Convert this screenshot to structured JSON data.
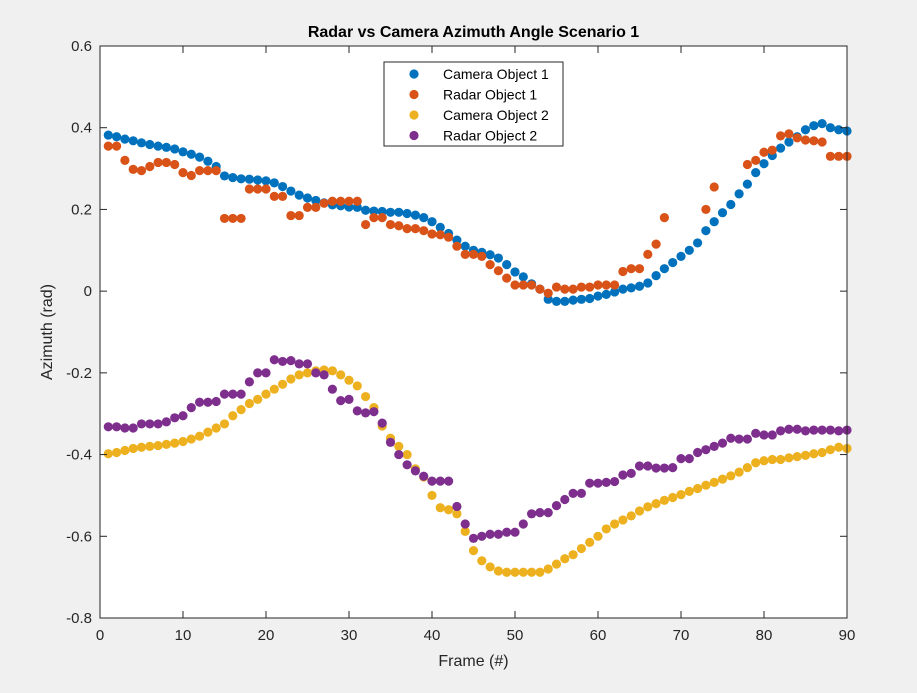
{
  "figure": {
    "background": "#f0f0f0"
  },
  "chart_data": {
    "type": "scatter",
    "title": "Radar vs Camera Azimuth Angle Scenario 1",
    "xlabel": "Frame (#)",
    "ylabel": "Azimuth (rad)",
    "xlim": [
      0,
      90
    ],
    "ylim": [
      -0.8,
      0.6
    ],
    "xticks": [
      0,
      10,
      20,
      30,
      40,
      50,
      60,
      70,
      80,
      90
    ],
    "xtick_labels": [
      "0",
      "10",
      "20",
      "30",
      "40",
      "50",
      "60",
      "70",
      "80",
      "90"
    ],
    "yticks": [
      -0.8,
      -0.6,
      -0.4,
      -0.2,
      0,
      0.2,
      0.4,
      0.6
    ],
    "ytick_labels": [
      "-0.8",
      "-0.6",
      "-0.4",
      "-0.2",
      "0",
      "0.2",
      "0.4",
      "0.6"
    ],
    "grid": false,
    "legend": "top-center",
    "series": [
      {
        "name": "Camera Object 1",
        "color": "#0072bd",
        "x": [
          1,
          2,
          3,
          4,
          5,
          6,
          7,
          8,
          9,
          10,
          11,
          12,
          13,
          14,
          15,
          16,
          17,
          18,
          19,
          20,
          21,
          22,
          23,
          24,
          25,
          26,
          27,
          28,
          29,
          30,
          31,
          32,
          33,
          34,
          35,
          36,
          37,
          38,
          39,
          40,
          41,
          42,
          43,
          44,
          45,
          46,
          47,
          48,
          49,
          50,
          51,
          52,
          53,
          54,
          55,
          56,
          57,
          58,
          59,
          60,
          61,
          62,
          63,
          64,
          65,
          66,
          67,
          68,
          69,
          70,
          71,
          72,
          73,
          74,
          75,
          76,
          77,
          78,
          79,
          80,
          81,
          82,
          83,
          84,
          85,
          86,
          87,
          88,
          89,
          90
        ],
        "y": [
          0.382,
          0.378,
          0.372,
          0.368,
          0.363,
          0.359,
          0.355,
          0.352,
          0.348,
          0.341,
          0.335,
          0.328,
          0.318,
          0.305,
          0.282,
          0.278,
          0.275,
          0.274,
          0.272,
          0.27,
          0.265,
          0.256,
          0.245,
          0.235,
          0.228,
          0.222,
          0.216,
          0.211,
          0.209,
          0.206,
          0.205,
          0.198,
          0.196,
          0.195,
          0.193,
          0.193,
          0.19,
          0.186,
          0.18,
          0.17,
          0.156,
          0.141,
          0.125,
          0.11,
          0.1,
          0.095,
          0.089,
          0.081,
          0.065,
          0.047,
          0.035,
          0.018,
          0.005,
          -0.02,
          -0.025,
          -0.025,
          -0.022,
          -0.02,
          -0.018,
          -0.012,
          -0.008,
          -0.002,
          0.005,
          0.008,
          0.012,
          0.02,
          0.038,
          0.055,
          0.07,
          0.085,
          0.1,
          0.118,
          0.148,
          0.17,
          0.192,
          0.212,
          0.238,
          0.262,
          0.29,
          0.312,
          0.332,
          0.35,
          0.365,
          0.378,
          0.395,
          0.405,
          0.41,
          0.4,
          0.395,
          0.392
        ]
      },
      {
        "name": "Radar Object 1",
        "color": "#d95319",
        "x": [
          1,
          2,
          3,
          4,
          5,
          6,
          7,
          8,
          9,
          10,
          11,
          12,
          13,
          14,
          15,
          16,
          17,
          18,
          19,
          20,
          21,
          22,
          23,
          24,
          25,
          26,
          27,
          28,
          29,
          30,
          31,
          32,
          33,
          34,
          35,
          36,
          37,
          38,
          39,
          40,
          41,
          42,
          43,
          44,
          45,
          46,
          47,
          48,
          49,
          50,
          51,
          52,
          53,
          54,
          55,
          56,
          57,
          58,
          59,
          60,
          61,
          62,
          63,
          64,
          65,
          66,
          67,
          68,
          73,
          74,
          78,
          79,
          80,
          81,
          82,
          83,
          84,
          85,
          86,
          87,
          88,
          89,
          90
        ],
        "y": [
          0.355,
          0.355,
          0.32,
          0.298,
          0.295,
          0.305,
          0.315,
          0.315,
          0.31,
          0.29,
          0.283,
          0.295,
          0.295,
          0.295,
          0.178,
          0.178,
          0.178,
          0.25,
          0.25,
          0.25,
          0.232,
          0.232,
          0.185,
          0.185,
          0.205,
          0.205,
          0.215,
          0.22,
          0.22,
          0.22,
          0.22,
          0.163,
          0.18,
          0.18,
          0.163,
          0.16,
          0.153,
          0.153,
          0.148,
          0.14,
          0.138,
          0.132,
          0.11,
          0.09,
          0.09,
          0.085,
          0.065,
          0.05,
          0.032,
          0.015,
          0.015,
          0.015,
          0.005,
          -0.005,
          0.01,
          0.005,
          0.005,
          0.01,
          0.01,
          0.015,
          0.015,
          0.015,
          0.048,
          0.055,
          0.055,
          0.09,
          0.115,
          0.18,
          0.2,
          0.255,
          0.31,
          0.32,
          0.34,
          0.345,
          0.38,
          0.385,
          0.375,
          0.37,
          0.368,
          0.365,
          0.33,
          0.33,
          0.33
        ]
      },
      {
        "name": "Camera Object 2",
        "color": "#edb120",
        "x": [
          1,
          2,
          3,
          4,
          5,
          6,
          7,
          8,
          9,
          10,
          11,
          12,
          13,
          14,
          15,
          16,
          17,
          18,
          19,
          20,
          21,
          22,
          23,
          24,
          25,
          26,
          27,
          28,
          29,
          30,
          31,
          32,
          33,
          34,
          35,
          36,
          37,
          38,
          39,
          40,
          41,
          42,
          43,
          44,
          45,
          46,
          47,
          48,
          49,
          50,
          51,
          52,
          53,
          54,
          55,
          56,
          57,
          58,
          59,
          60,
          61,
          62,
          63,
          64,
          65,
          66,
          67,
          68,
          69,
          70,
          71,
          72,
          73,
          74,
          75,
          76,
          77,
          78,
          79,
          80,
          81,
          82,
          83,
          84,
          85,
          86,
          87,
          88,
          89,
          90
        ],
        "y": [
          -0.398,
          -0.395,
          -0.39,
          -0.385,
          -0.382,
          -0.38,
          -0.378,
          -0.375,
          -0.372,
          -0.368,
          -0.362,
          -0.355,
          -0.345,
          -0.335,
          -0.325,
          -0.305,
          -0.29,
          -0.275,
          -0.265,
          -0.252,
          -0.24,
          -0.228,
          -0.215,
          -0.205,
          -0.2,
          -0.195,
          -0.193,
          -0.195,
          -0.205,
          -0.218,
          -0.232,
          -0.258,
          -0.285,
          -0.33,
          -0.36,
          -0.38,
          -0.4,
          -0.435,
          -0.455,
          -0.5,
          -0.53,
          -0.535,
          -0.545,
          -0.588,
          -0.635,
          -0.66,
          -0.675,
          -0.685,
          -0.688,
          -0.688,
          -0.688,
          -0.688,
          -0.688,
          -0.68,
          -0.668,
          -0.655,
          -0.645,
          -0.63,
          -0.615,
          -0.6,
          -0.582,
          -0.57,
          -0.56,
          -0.55,
          -0.538,
          -0.528,
          -0.52,
          -0.512,
          -0.505,
          -0.498,
          -0.49,
          -0.483,
          -0.475,
          -0.468,
          -0.46,
          -0.452,
          -0.443,
          -0.432,
          -0.42,
          -0.415,
          -0.412,
          -0.412,
          -0.408,
          -0.405,
          -0.402,
          -0.398,
          -0.395,
          -0.388,
          -0.382,
          -0.385
        ]
      },
      {
        "name": "Radar Object 2",
        "color": "#7e2f8e",
        "x": [
          1,
          2,
          3,
          4,
          5,
          6,
          7,
          8,
          9,
          10,
          11,
          12,
          13,
          14,
          15,
          16,
          17,
          18,
          19,
          20,
          21,
          22,
          23,
          24,
          25,
          26,
          27,
          28,
          29,
          30,
          31,
          32,
          33,
          34,
          35,
          36,
          37,
          38,
          39,
          40,
          41,
          42,
          43,
          44,
          45,
          46,
          47,
          48,
          49,
          50,
          51,
          52,
          53,
          54,
          55,
          56,
          57,
          58,
          59,
          60,
          61,
          62,
          63,
          64,
          65,
          66,
          67,
          68,
          69,
          70,
          71,
          72,
          73,
          74,
          75,
          76,
          77,
          78,
          79,
          80,
          81,
          82,
          83,
          84,
          85,
          86,
          87,
          88,
          89,
          90
        ],
        "y": [
          -0.332,
          -0.332,
          -0.335,
          -0.335,
          -0.325,
          -0.325,
          -0.325,
          -0.32,
          -0.31,
          -0.305,
          -0.285,
          -0.272,
          -0.272,
          -0.27,
          -0.252,
          -0.252,
          -0.252,
          -0.222,
          -0.2,
          -0.2,
          -0.168,
          -0.172,
          -0.17,
          -0.178,
          -0.178,
          -0.2,
          -0.205,
          -0.24,
          -0.268,
          -0.265,
          -0.293,
          -0.298,
          -0.295,
          -0.323,
          -0.37,
          -0.4,
          -0.425,
          -0.44,
          -0.453,
          -0.465,
          -0.465,
          -0.465,
          -0.527,
          -0.57,
          -0.605,
          -0.6,
          -0.595,
          -0.595,
          -0.59,
          -0.59,
          -0.57,
          -0.545,
          -0.542,
          -0.542,
          -0.525,
          -0.51,
          -0.495,
          -0.495,
          -0.47,
          -0.47,
          -0.468,
          -0.466,
          -0.45,
          -0.446,
          -0.428,
          -0.428,
          -0.433,
          -0.433,
          -0.432,
          -0.41,
          -0.41,
          -0.395,
          -0.388,
          -0.38,
          -0.372,
          -0.36,
          -0.362,
          -0.362,
          -0.348,
          -0.352,
          -0.352,
          -0.342,
          -0.338,
          -0.338,
          -0.342,
          -0.34,
          -0.34,
          -0.34,
          -0.342,
          -0.34
        ]
      }
    ]
  }
}
